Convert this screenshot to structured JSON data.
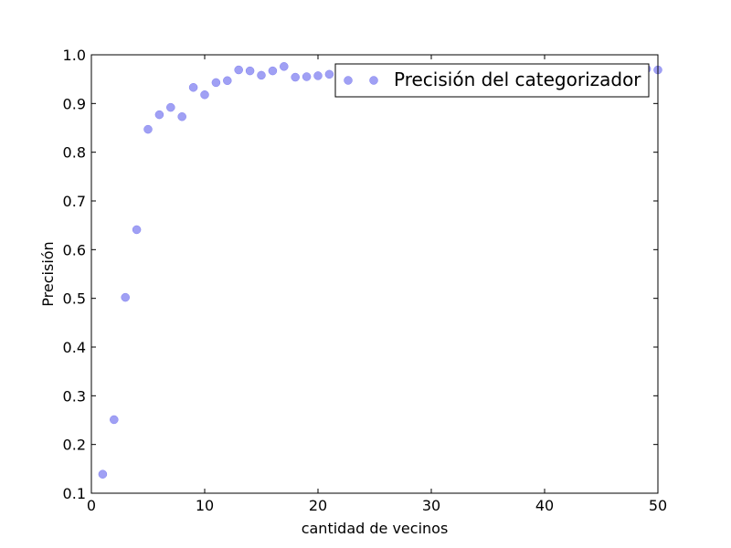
{
  "chart_data": {
    "type": "scatter",
    "title": "",
    "xlabel": "cantidad de vecinos",
    "ylabel": "Precisión",
    "xlim": [
      0,
      50
    ],
    "ylim": [
      0.1,
      1.0
    ],
    "xticks": [
      0,
      10,
      20,
      30,
      40,
      50
    ],
    "yticks": [
      0.1,
      0.2,
      0.3,
      0.4,
      0.5,
      0.6,
      0.7,
      0.8,
      0.9,
      1.0
    ],
    "xtick_labels": [
      "0",
      "10",
      "20",
      "30",
      "40",
      "50"
    ],
    "ytick_labels": [
      "0.1",
      "0.2",
      "0.3",
      "0.4",
      "0.5",
      "0.6",
      "0.7",
      "0.8",
      "0.9",
      "1.0"
    ],
    "grid": false,
    "legend_position": "top-right",
    "series": [
      {
        "name": "Precisión del categorizador",
        "color": "#8080f0",
        "x": [
          1,
          2,
          3,
          4,
          5,
          6,
          7,
          8,
          9,
          10,
          11,
          12,
          13,
          14,
          15,
          16,
          17,
          18,
          19,
          20,
          21,
          22,
          23,
          24,
          25,
          26,
          27,
          28,
          29,
          30,
          31,
          32,
          33,
          34,
          35,
          36,
          37,
          38,
          39,
          40,
          41,
          42,
          43,
          44,
          45,
          46,
          47,
          48,
          49,
          50
        ],
        "y": [
          0.139,
          0.251,
          0.502,
          0.641,
          0.847,
          0.877,
          0.892,
          0.873,
          0.933,
          0.918,
          0.943,
          0.947,
          0.969,
          0.967,
          0.958,
          0.967,
          0.976,
          0.954,
          0.955,
          0.957,
          0.96,
          0.962,
          0.963,
          0.964,
          0.965,
          0.965,
          0.966,
          0.966,
          0.967,
          0.967,
          0.968,
          0.968,
          0.968,
          0.969,
          0.969,
          0.969,
          0.97,
          0.97,
          0.97,
          0.97,
          0.971,
          0.971,
          0.971,
          0.972,
          0.972,
          0.972,
          0.973,
          0.972,
          0.971,
          0.969
        ]
      }
    ]
  }
}
